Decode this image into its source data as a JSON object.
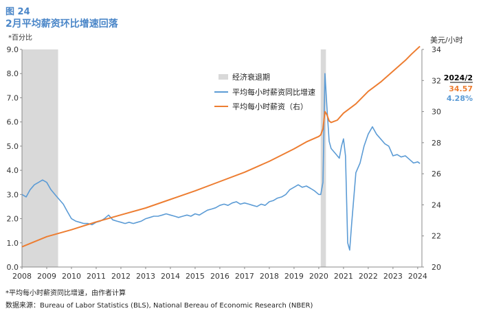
{
  "figure": {
    "label": "图 24",
    "title": "2月平均薪资环比增速回落",
    "footnote": "*平均每小时薪资同比增速，由作者计算",
    "source": "数据来源：Bureau of Labor Statistics (BLS), National Bereau of Economic Research (NBER)"
  },
  "chart_data": {
    "type": "line",
    "left_axis_label": "*百分比",
    "right_axis_label": "美元/小时",
    "x_ticks": [
      "2008",
      "2009",
      "2010",
      "2011",
      "2012",
      "2013",
      "2014",
      "2015",
      "2016",
      "2017",
      "2018",
      "2019",
      "2020",
      "2021",
      "2022",
      "2023",
      "2024"
    ],
    "y_left_ticks": [
      "0.0",
      "1.0",
      "2.0",
      "3.0",
      "4.0",
      "5.0",
      "6.0",
      "7.0",
      "8.0",
      "9.0"
    ],
    "y_right_ticks": [
      "20",
      "22",
      "24",
      "26",
      "28",
      "30",
      "32",
      "34"
    ],
    "ylim_left": [
      0,
      9
    ],
    "ylim_right": [
      20,
      34
    ],
    "xlim": [
      2008.0,
      2024.17
    ],
    "recessions": [
      {
        "label": "经济衰退期",
        "start": 2008.0,
        "end": 2009.46
      },
      {
        "label": "经济衰退期",
        "start": 2020.08,
        "end": 2020.29
      }
    ],
    "series": [
      {
        "name": "平均每小时薪资同比增速",
        "axis": "left",
        "color": "#5b9bd5",
        "points": [
          [
            2008.0,
            3.0
          ],
          [
            2008.17,
            2.9
          ],
          [
            2008.33,
            3.2
          ],
          [
            2008.5,
            3.4
          ],
          [
            2008.67,
            3.5
          ],
          [
            2008.83,
            3.6
          ],
          [
            2009.0,
            3.5
          ],
          [
            2009.17,
            3.2
          ],
          [
            2009.33,
            3.0
          ],
          [
            2009.5,
            2.8
          ],
          [
            2009.67,
            2.6
          ],
          [
            2009.83,
            2.3
          ],
          [
            2010.0,
            2.0
          ],
          [
            2010.17,
            1.9
          ],
          [
            2010.33,
            1.85
          ],
          [
            2010.5,
            1.8
          ],
          [
            2010.67,
            1.8
          ],
          [
            2010.83,
            1.75
          ],
          [
            2011.0,
            1.85
          ],
          [
            2011.17,
            1.9
          ],
          [
            2011.33,
            2.0
          ],
          [
            2011.5,
            2.15
          ],
          [
            2011.67,
            1.95
          ],
          [
            2011.83,
            1.9
          ],
          [
            2012.0,
            1.85
          ],
          [
            2012.17,
            1.8
          ],
          [
            2012.33,
            1.85
          ],
          [
            2012.5,
            1.8
          ],
          [
            2012.67,
            1.85
          ],
          [
            2012.83,
            1.9
          ],
          [
            2013.0,
            2.0
          ],
          [
            2013.17,
            2.05
          ],
          [
            2013.33,
            2.1
          ],
          [
            2013.5,
            2.1
          ],
          [
            2013.67,
            2.15
          ],
          [
            2013.83,
            2.2
          ],
          [
            2014.0,
            2.15
          ],
          [
            2014.17,
            2.1
          ],
          [
            2014.33,
            2.05
          ],
          [
            2014.5,
            2.1
          ],
          [
            2014.67,
            2.15
          ],
          [
            2014.83,
            2.1
          ],
          [
            2015.0,
            2.2
          ],
          [
            2015.17,
            2.15
          ],
          [
            2015.33,
            2.25
          ],
          [
            2015.5,
            2.35
          ],
          [
            2015.67,
            2.4
          ],
          [
            2015.83,
            2.45
          ],
          [
            2016.0,
            2.55
          ],
          [
            2016.17,
            2.6
          ],
          [
            2016.33,
            2.55
          ],
          [
            2016.5,
            2.65
          ],
          [
            2016.67,
            2.7
          ],
          [
            2016.83,
            2.6
          ],
          [
            2017.0,
            2.65
          ],
          [
            2017.17,
            2.6
          ],
          [
            2017.33,
            2.55
          ],
          [
            2017.5,
            2.5
          ],
          [
            2017.67,
            2.6
          ],
          [
            2017.83,
            2.55
          ],
          [
            2018.0,
            2.7
          ],
          [
            2018.17,
            2.75
          ],
          [
            2018.33,
            2.85
          ],
          [
            2018.5,
            2.9
          ],
          [
            2018.67,
            3.0
          ],
          [
            2018.83,
            3.2
          ],
          [
            2019.0,
            3.3
          ],
          [
            2019.17,
            3.4
          ],
          [
            2019.33,
            3.3
          ],
          [
            2019.5,
            3.35
          ],
          [
            2019.67,
            3.25
          ],
          [
            2019.83,
            3.15
          ],
          [
            2020.0,
            3.0
          ],
          [
            2020.08,
            3.0
          ],
          [
            2020.17,
            3.5
          ],
          [
            2020.25,
            8.0
          ],
          [
            2020.33,
            6.6
          ],
          [
            2020.42,
            5.2
          ],
          [
            2020.5,
            4.9
          ],
          [
            2020.67,
            4.7
          ],
          [
            2020.83,
            4.5
          ],
          [
            2020.92,
            5.0
          ],
          [
            2021.0,
            5.3
          ],
          [
            2021.08,
            4.6
          ],
          [
            2021.17,
            1.0
          ],
          [
            2021.25,
            0.7
          ],
          [
            2021.33,
            1.8
          ],
          [
            2021.5,
            3.9
          ],
          [
            2021.67,
            4.3
          ],
          [
            2021.83,
            5.0
          ],
          [
            2022.0,
            5.5
          ],
          [
            2022.17,
            5.8
          ],
          [
            2022.33,
            5.5
          ],
          [
            2022.5,
            5.3
          ],
          [
            2022.67,
            5.1
          ],
          [
            2022.83,
            5.0
          ],
          [
            2023.0,
            4.6
          ],
          [
            2023.17,
            4.65
          ],
          [
            2023.33,
            4.55
          ],
          [
            2023.5,
            4.6
          ],
          [
            2023.67,
            4.45
          ],
          [
            2023.83,
            4.3
          ],
          [
            2024.0,
            4.35
          ],
          [
            2024.09,
            4.28
          ]
        ]
      },
      {
        "name": "平均每小时薪资（右）",
        "axis": "right",
        "color": "#ed7d31",
        "points": [
          [
            2008.0,
            21.3
          ],
          [
            2009.0,
            21.95
          ],
          [
            2010.0,
            22.4
          ],
          [
            2011.0,
            22.9
          ],
          [
            2012.0,
            23.35
          ],
          [
            2013.0,
            23.8
          ],
          [
            2014.0,
            24.35
          ],
          [
            2015.0,
            24.9
          ],
          [
            2016.0,
            25.5
          ],
          [
            2017.0,
            26.1
          ],
          [
            2018.0,
            26.8
          ],
          [
            2019.0,
            27.6
          ],
          [
            2019.5,
            28.05
          ],
          [
            2020.0,
            28.4
          ],
          [
            2020.08,
            28.5
          ],
          [
            2020.17,
            28.9
          ],
          [
            2020.25,
            30.0
          ],
          [
            2020.33,
            29.8
          ],
          [
            2020.42,
            29.4
          ],
          [
            2020.5,
            29.3
          ],
          [
            2020.75,
            29.45
          ],
          [
            2021.0,
            29.9
          ],
          [
            2021.5,
            30.5
          ],
          [
            2022.0,
            31.3
          ],
          [
            2022.5,
            31.9
          ],
          [
            2023.0,
            32.6
          ],
          [
            2023.5,
            33.3
          ],
          [
            2023.75,
            33.7
          ],
          [
            2024.09,
            34.2
          ]
        ]
      }
    ],
    "legend": [
      "经济衰退期",
      "平均每小时薪资同比增速",
      "平均每小时薪资（右）"
    ],
    "legend_position": "top-center",
    "annotation": {
      "date": "2024/2",
      "wage": "34.57",
      "growth": "4.28%"
    }
  }
}
